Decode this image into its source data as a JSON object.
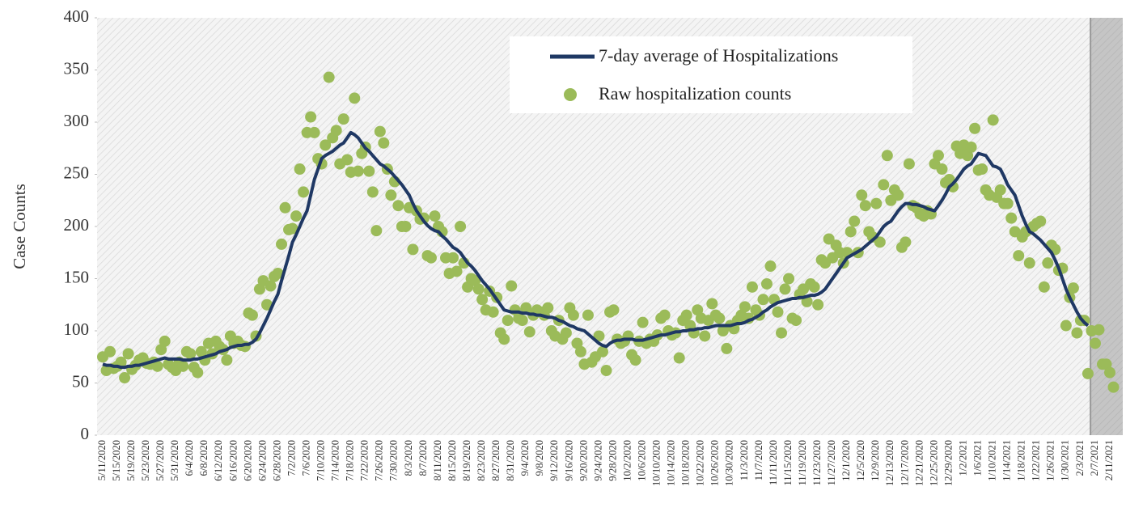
{
  "chart_data": {
    "type": "line",
    "y_label": "Case Counts",
    "categories": [
      "5/11/2020",
      null,
      null,
      null,
      "5/15/2020",
      null,
      null,
      null,
      "5/19/2020",
      null,
      null,
      null,
      "5/23/2020",
      null,
      null,
      null,
      "5/27/2020",
      null,
      null,
      null,
      "5/31/2020",
      null,
      null,
      null,
      "6/4/2020",
      null,
      null,
      null,
      "6/8/2020",
      null,
      null,
      null,
      "6/12/2020",
      null,
      null,
      null,
      "6/16/2020",
      null,
      null,
      null,
      "6/20/2020",
      null,
      null,
      null,
      "6/24/2020",
      null,
      null,
      null,
      "6/28/2020",
      null,
      null,
      null,
      "7/2/2020",
      null,
      null,
      null,
      "7/6/2020",
      null,
      null,
      null,
      "7/10/2020",
      null,
      null,
      null,
      "7/14/2020",
      null,
      null,
      null,
      "7/18/2020",
      null,
      null,
      null,
      "7/22/2020",
      null,
      null,
      null,
      "7/26/2020",
      null,
      null,
      null,
      "7/30/2020",
      null,
      null,
      null,
      "8/3/2020",
      null,
      null,
      null,
      "8/7/2020",
      null,
      null,
      null,
      "8/11/2020",
      null,
      null,
      null,
      "8/15/2020",
      null,
      null,
      null,
      "8/19/2020",
      null,
      null,
      null,
      "8/23/2020",
      null,
      null,
      null,
      "8/27/2020",
      null,
      null,
      null,
      "8/31/2020",
      null,
      null,
      null,
      "9/4/2020",
      null,
      null,
      null,
      "9/8/2020",
      null,
      null,
      null,
      "9/12/2020",
      null,
      null,
      null,
      "9/16/2020",
      null,
      null,
      null,
      "9/20/2020",
      null,
      null,
      null,
      "9/24/2020",
      null,
      null,
      null,
      "9/28/2020",
      null,
      null,
      null,
      "10/2/2020",
      null,
      null,
      null,
      "10/6/2020",
      null,
      null,
      null,
      "10/10/2020",
      null,
      null,
      null,
      "10/14/2020",
      null,
      null,
      null,
      "10/18/2020",
      null,
      null,
      null,
      "10/22/2020",
      null,
      null,
      null,
      "10/26/2020",
      null,
      null,
      null,
      "10/30/2020",
      null,
      null,
      null,
      "11/3/2020",
      null,
      null,
      null,
      "11/7/2020",
      null,
      null,
      null,
      "11/11/2020",
      null,
      null,
      null,
      "11/15/2020",
      null,
      null,
      null,
      "11/19/2020",
      null,
      null,
      null,
      "11/23/2020",
      null,
      null,
      null,
      "11/27/2020",
      null,
      null,
      null,
      "12/1/2020",
      null,
      null,
      null,
      "12/5/2020",
      null,
      null,
      null,
      "12/9/2020",
      null,
      null,
      null,
      "12/13/2020",
      null,
      null,
      null,
      "12/17/2020",
      null,
      null,
      null,
      "12/21/2020",
      null,
      null,
      null,
      "12/25/2020",
      null,
      null,
      null,
      "12/29/2020",
      null,
      null,
      null,
      "1/2/2021",
      null,
      null,
      null,
      "1/6/2021",
      null,
      null,
      null,
      "1/10/2021",
      null,
      null,
      null,
      "1/14/2021",
      null,
      null,
      null,
      "1/18/2021",
      null,
      null,
      null,
      "1/22/2021",
      null,
      null,
      null,
      "1/26/2021",
      null,
      null,
      null,
      "1/30/2021",
      null,
      null,
      null,
      "2/3/2021",
      null,
      null,
      null,
      "2/7/2021",
      null,
      null,
      null,
      "2/11/2021",
      null
    ],
    "series": [
      {
        "name": "7-day average of Hospitalizations",
        "type": "line",
        "color": "#1f3864",
        "values": [
          68,
          67,
          67,
          66,
          66,
          65,
          65,
          66,
          66,
          67,
          67,
          68,
          69,
          70,
          71,
          72,
          73,
          74,
          73,
          73,
          73,
          73,
          72,
          72,
          72,
          73,
          73,
          74,
          75,
          76,
          77,
          78,
          80,
          81,
          82,
          84,
          85,
          86,
          86,
          87,
          87,
          89,
          92,
          98,
          105,
          112,
          120,
          128,
          135,
          148,
          160,
          172,
          185,
          192,
          200,
          208,
          215,
          230,
          245,
          255,
          265,
          268,
          270,
          272,
          275,
          278,
          280,
          285,
          290,
          288,
          285,
          280,
          275,
          272,
          268,
          264,
          260,
          258,
          255,
          252,
          248,
          244,
          240,
          235,
          230,
          222,
          215,
          210,
          205,
          201,
          198,
          196,
          195,
          191,
          188,
          184,
          180,
          178,
          175,
          170,
          165,
          162,
          158,
          153,
          148,
          144,
          140,
          135,
          130,
          125,
          120,
          119,
          118,
          118,
          118,
          117,
          117,
          116,
          116,
          115,
          115,
          114,
          113,
          113,
          112,
          110,
          109,
          107,
          105,
          104,
          102,
          101,
          100,
          97,
          94,
          91,
          88,
          86,
          85,
          88,
          90,
          91,
          91,
          92,
          92,
          92,
          91,
          91,
          91,
          92,
          93,
          94,
          95,
          96,
          96,
          97,
          98,
          99,
          99,
          100,
          100,
          101,
          101,
          102,
          102,
          103,
          103,
          104,
          105,
          105,
          105,
          105,
          105,
          106,
          107,
          107,
          108,
          110,
          111,
          113,
          115,
          118,
          120,
          123,
          125,
          127,
          128,
          129,
          130,
          131,
          131,
          132,
          132,
          133,
          134,
          134,
          135,
          137,
          140,
          145,
          150,
          155,
          160,
          165,
          170,
          172,
          174,
          176,
          178,
          181,
          184,
          187,
          190,
          195,
          200,
          203,
          205,
          210,
          215,
          219,
          222,
          222,
          221,
          221,
          220,
          219,
          217,
          216,
          215,
          220,
          225,
          231,
          238,
          241,
          245,
          250,
          255,
          258,
          260,
          265,
          270,
          269,
          268,
          263,
          258,
          257,
          255,
          248,
          240,
          235,
          230,
          220,
          210,
          202,
          195,
          193,
          190,
          187,
          183,
          179,
          175,
          168,
          160,
          150,
          140,
          132,
          125,
          118,
          112,
          108,
          105,
          null,
          null,
          null,
          null,
          null,
          null,
          null
        ]
      },
      {
        "name": "Raw hospitalization counts",
        "type": "scatter",
        "color": "#9bbb59",
        "values": [
          75,
          62,
          80,
          64,
          66,
          70,
          55,
          78,
          63,
          67,
          72,
          74,
          69,
          68,
          70,
          66,
          82,
          90,
          68,
          65,
          62,
          70,
          66,
          80,
          78,
          65,
          60,
          80,
          72,
          88,
          78,
          90,
          85,
          82,
          72,
          95,
          88,
          90,
          86,
          85,
          117,
          115,
          95,
          140,
          148,
          125,
          143,
          152,
          155,
          183,
          218,
          197,
          198,
          210,
          255,
          233,
          290,
          305,
          290,
          265,
          260,
          278,
          343,
          285,
          292,
          260,
          303,
          264,
          252,
          323,
          253,
          270,
          276,
          253,
          233,
          196,
          291,
          280,
          255,
          230,
          243,
          220,
          200,
          200,
          218,
          178,
          215,
          207,
          208,
          172,
          170,
          210,
          200,
          195,
          170,
          155,
          170,
          157,
          200,
          165,
          142,
          150,
          148,
          140,
          130,
          120,
          138,
          118,
          132,
          98,
          92,
          110,
          143,
          120,
          112,
          110,
          122,
          99,
          115,
          120,
          118,
          115,
          122,
          100,
          95,
          110,
          92,
          98,
          122,
          115,
          88,
          80,
          68,
          115,
          70,
          75,
          95,
          80,
          62,
          118,
          120,
          92,
          88,
          90,
          95,
          77,
          72,
          90,
          108,
          88,
          92,
          90,
          96,
          112,
          115,
          100,
          96,
          98,
          74,
          110,
          115,
          105,
          98,
          120,
          112,
          95,
          110,
          126,
          115,
          112,
          100,
          83,
          105,
          102,
          110,
          115,
          123,
          112,
          142,
          120,
          115,
          130,
          145,
          162,
          130,
          118,
          98,
          140,
          150,
          112,
          110,
          135,
          140,
          128,
          145,
          142,
          125,
          168,
          165,
          188,
          170,
          182,
          175,
          165,
          175,
          195,
          205,
          175,
          230,
          220,
          195,
          190,
          222,
          185,
          240,
          268,
          225,
          235,
          230,
          180,
          185,
          260,
          220,
          218,
          212,
          210,
          215,
          212,
          260,
          268,
          255,
          242,
          245,
          238,
          277,
          270,
          278,
          268,
          276,
          294,
          254,
          255,
          235,
          230,
          302,
          228,
          235,
          222,
          222,
          208,
          195,
          172,
          190,
          195,
          165,
          200,
          203,
          205,
          142,
          165,
          182,
          178,
          158,
          160,
          105,
          132,
          141,
          98,
          110,
          110,
          59,
          100,
          88,
          101,
          68,
          68,
          60,
          46
        ]
      }
    ],
    "ylim": [
      0,
      400
    ],
    "yticks": [
      0,
      50,
      100,
      150,
      200,
      250,
      300,
      350,
      400
    ],
    "grid": false,
    "legend": "top",
    "shade_from": "2/7/2021"
  }
}
